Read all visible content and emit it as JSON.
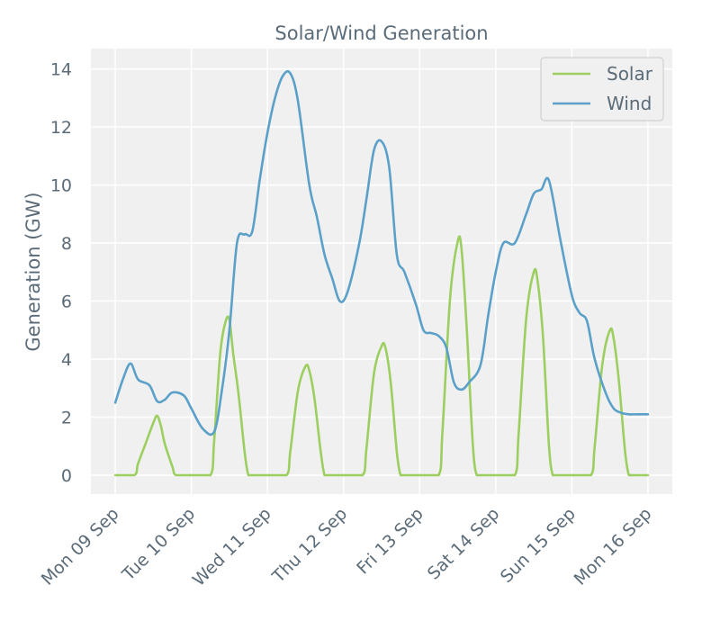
{
  "chart_data": {
    "type": "line",
    "title": "Solar/Wind Generation",
    "xlabel": "",
    "ylabel": "Generation (GW)",
    "ylim": [
      -0.65,
      14.7
    ],
    "xlim": [
      -0.32,
      7.32
    ],
    "yticks": [
      0,
      2,
      4,
      6,
      8,
      10,
      12,
      14
    ],
    "xticks": [
      {
        "pos": 0,
        "label": "Mon 09 Sep"
      },
      {
        "pos": 1,
        "label": "Tue 10 Sep"
      },
      {
        "pos": 2,
        "label": "Wed 11 Sep"
      },
      {
        "pos": 3,
        "label": "Thu 12 Sep"
      },
      {
        "pos": 4,
        "label": "Fri 13 Sep"
      },
      {
        "pos": 5,
        "label": "Sat 14 Sep"
      },
      {
        "pos": 6,
        "label": "Sun 15 Sep"
      },
      {
        "pos": 7,
        "label": "Mon 16 Sep"
      }
    ],
    "grid": true,
    "legend_position": "top-right",
    "series": [
      {
        "name": "Solar",
        "color": "#9ccf5f",
        "x": [
          0,
          0.25,
          0.3,
          0.4,
          0.5,
          0.55,
          0.6,
          0.65,
          0.75,
          0.8,
          1.0,
          1.25,
          1.3,
          1.38,
          1.45,
          1.5,
          1.55,
          1.62,
          1.7,
          1.75,
          1.8,
          2.0,
          2.25,
          2.3,
          2.4,
          2.5,
          2.55,
          2.62,
          2.7,
          2.75,
          2.8,
          3.0,
          3.25,
          3.3,
          3.4,
          3.5,
          3.55,
          3.62,
          3.7,
          3.75,
          3.8,
          4.0,
          4.25,
          4.3,
          4.4,
          4.5,
          4.55,
          4.62,
          4.7,
          4.75,
          4.8,
          5.0,
          5.25,
          5.3,
          5.4,
          5.5,
          5.55,
          5.62,
          5.7,
          5.75,
          5.8,
          6.0,
          6.25,
          6.3,
          6.4,
          6.5,
          6.55,
          6.62,
          6.7,
          6.75,
          6.8,
          7.0
        ],
        "values": [
          0,
          0,
          0.4,
          1.1,
          1.8,
          2.05,
          1.7,
          1.1,
          0.3,
          0,
          0,
          0,
          1.2,
          4.2,
          5.3,
          5.35,
          4.2,
          2.8,
          0.8,
          0,
          0,
          0,
          0,
          0.8,
          2.9,
          3.75,
          3.6,
          2.6,
          0.8,
          0,
          0,
          0,
          0,
          0.9,
          3.5,
          4.45,
          4.4,
          3.2,
          0.8,
          0,
          0,
          0,
          0,
          1.5,
          6.1,
          8.05,
          7.8,
          5.0,
          1.0,
          0,
          0,
          0,
          0,
          1.4,
          5.4,
          7.0,
          6.7,
          4.8,
          1.0,
          0,
          0,
          0,
          0,
          1.0,
          3.8,
          5.0,
          4.7,
          3.2,
          0.8,
          0,
          0,
          0
        ]
      },
      {
        "name": "Wind",
        "color": "#5ba0c8",
        "x": [
          0,
          0.1,
          0.2,
          0.3,
          0.45,
          0.55,
          0.65,
          0.75,
          0.9,
          1.0,
          1.15,
          1.3,
          1.4,
          1.5,
          1.6,
          1.7,
          1.8,
          1.9,
          2.0,
          2.1,
          2.2,
          2.3,
          2.4,
          2.55,
          2.65,
          2.75,
          2.85,
          2.95,
          3.05,
          3.2,
          3.3,
          3.4,
          3.5,
          3.6,
          3.7,
          3.8,
          3.95,
          4.05,
          4.15,
          4.25,
          4.35,
          4.45,
          4.55,
          4.65,
          4.8,
          4.9,
          5.0,
          5.1,
          5.25,
          5.4,
          5.5,
          5.6,
          5.7,
          5.85,
          6.0,
          6.1,
          6.2,
          6.3,
          6.45,
          6.55,
          6.65,
          6.75,
          6.85,
          7.0
        ],
        "values": [
          2.5,
          3.3,
          3.85,
          3.3,
          3.1,
          2.55,
          2.6,
          2.85,
          2.75,
          2.3,
          1.6,
          1.5,
          2.9,
          5.0,
          8.0,
          8.3,
          8.4,
          10.2,
          11.8,
          13.0,
          13.75,
          13.85,
          12.9,
          10.0,
          8.9,
          7.6,
          6.8,
          6.0,
          6.3,
          7.9,
          9.5,
          11.2,
          11.5,
          10.6,
          7.6,
          7.0,
          5.9,
          5.0,
          4.9,
          4.8,
          4.4,
          3.2,
          2.95,
          3.2,
          3.8,
          5.5,
          7.0,
          8.0,
          8.0,
          9.0,
          9.7,
          9.85,
          10.15,
          8.1,
          6.2,
          5.6,
          5.3,
          4.0,
          2.8,
          2.3,
          2.15,
          2.1,
          2.1,
          2.1
        ]
      }
    ]
  }
}
